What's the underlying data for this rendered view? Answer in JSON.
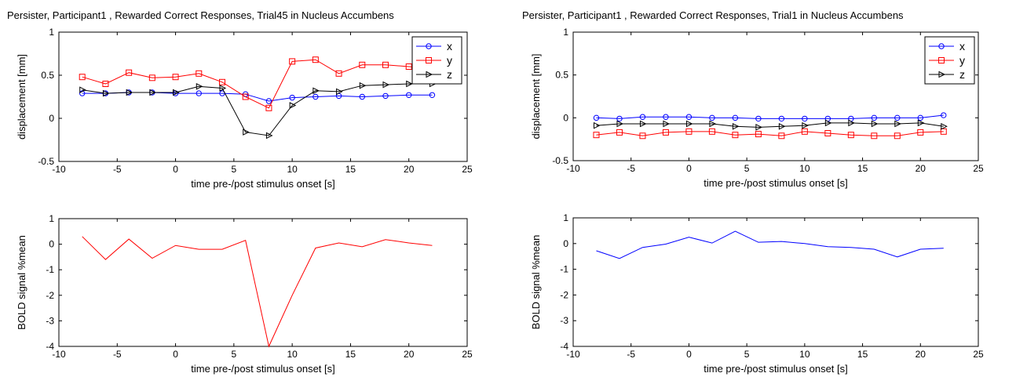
{
  "chart_data": [
    {
      "type": "line",
      "title": "Persister, Participant1 , Rewarded Correct Responses, Trial45 in Nucleus Accumbens",
      "xlabel": "time pre-/post stimulus onset [s]",
      "ylabel": "displacement [mm]",
      "xlim": [
        -10,
        25
      ],
      "ylim": [
        -0.5,
        1
      ],
      "xticks": [
        "-10",
        "-5",
        "0",
        "5",
        "10",
        "15",
        "20",
        "25"
      ],
      "yticks": [
        "-0.5",
        "0",
        "0.5",
        "1"
      ],
      "legend": "top-right",
      "x": [
        -8,
        -6,
        -4,
        -2,
        0,
        2,
        4,
        6,
        8,
        10,
        12,
        14,
        16,
        18,
        20,
        22
      ],
      "series": [
        {
          "name": "x",
          "color": "#0000ff",
          "marker": "circle",
          "values": [
            0.29,
            0.29,
            0.3,
            0.3,
            0.29,
            0.29,
            0.29,
            0.28,
            0.2,
            0.24,
            0.25,
            0.26,
            0.25,
            0.26,
            0.27,
            0.27
          ]
        },
        {
          "name": "y",
          "color": "#ff0000",
          "marker": "square",
          "values": [
            0.48,
            0.4,
            0.53,
            0.47,
            0.48,
            0.52,
            0.42,
            0.25,
            0.12,
            0.66,
            0.68,
            0.52,
            0.62,
            0.62,
            0.6,
            0.58
          ]
        },
        {
          "name": "z",
          "color": "#000000",
          "marker": "triangle-right",
          "values": [
            0.33,
            0.29,
            0.3,
            0.3,
            0.3,
            0.37,
            0.35,
            -0.16,
            -0.2,
            0.15,
            0.32,
            0.31,
            0.38,
            0.39,
            0.4,
            0.4
          ]
        }
      ]
    },
    {
      "type": "line",
      "title": "Persister, Participant1 , Rewarded Correct Responses, Trial1 in Nucleus Accumbens",
      "xlabel": "time pre-/post stimulus onset [s]",
      "ylabel": "displacement [mm]",
      "xlim": [
        -10,
        25
      ],
      "ylim": [
        -0.5,
        1
      ],
      "xticks": [
        "-10",
        "-5",
        "0",
        "5",
        "10",
        "15",
        "20",
        "25"
      ],
      "yticks": [
        "-0.5",
        "0",
        "0.5",
        "1"
      ],
      "legend": "top-right",
      "x": [
        -8,
        -6,
        -4,
        -2,
        0,
        2,
        4,
        6,
        8,
        10,
        12,
        14,
        16,
        18,
        20,
        22
      ],
      "series": [
        {
          "name": "x",
          "color": "#0000ff",
          "marker": "circle",
          "values": [
            0.0,
            -0.01,
            0.01,
            0.01,
            0.01,
            0.0,
            0.0,
            -0.01,
            -0.01,
            -0.01,
            -0.01,
            -0.01,
            0.0,
            0.0,
            0.0,
            0.03
          ]
        },
        {
          "name": "y",
          "color": "#ff0000",
          "marker": "square",
          "values": [
            -0.2,
            -0.17,
            -0.21,
            -0.17,
            -0.16,
            -0.16,
            -0.2,
            -0.19,
            -0.21,
            -0.16,
            -0.18,
            -0.2,
            -0.21,
            -0.21,
            -0.17,
            -0.16
          ]
        },
        {
          "name": "z",
          "color": "#000000",
          "marker": "triangle-right",
          "values": [
            -0.09,
            -0.07,
            -0.07,
            -0.07,
            -0.07,
            -0.07,
            -0.1,
            -0.11,
            -0.1,
            -0.09,
            -0.06,
            -0.06,
            -0.07,
            -0.07,
            -0.06,
            -0.1
          ]
        }
      ]
    },
    {
      "type": "line",
      "title": "",
      "xlabel": "time pre-/post stimulus onset [s]",
      "ylabel": "BOLD signal %mean",
      "xlim": [
        -10,
        25
      ],
      "ylim": [
        -4,
        1
      ],
      "xticks": [
        "-10",
        "-5",
        "0",
        "5",
        "10",
        "15",
        "20",
        "25"
      ],
      "yticks": [
        "-4",
        "-3",
        "-2",
        "-1",
        "0",
        "1"
      ],
      "legend": "",
      "x": [
        -8,
        -6,
        -4,
        -2,
        0,
        2,
        4,
        6,
        8,
        10,
        12,
        14,
        16,
        18,
        20,
        22
      ],
      "series": [
        {
          "name": "",
          "color": "#ff0000",
          "marker": "none",
          "values": [
            0.3,
            -0.6,
            0.2,
            -0.55,
            -0.05,
            -0.2,
            -0.2,
            0.15,
            -4.0,
            -2.0,
            -0.15,
            0.05,
            -0.1,
            0.18,
            0.05,
            -0.05
          ]
        }
      ]
    },
    {
      "type": "line",
      "title": "",
      "xlabel": "time pre-/post stimulus onset [s]",
      "ylabel": "BOLD signal %mean",
      "xlim": [
        -10,
        25
      ],
      "ylim": [
        -4,
        1
      ],
      "xticks": [
        "-10",
        "-5",
        "0",
        "5",
        "10",
        "15",
        "20",
        "25"
      ],
      "yticks": [
        "-4",
        "-3",
        "-2",
        "-1",
        "0",
        "1"
      ],
      "legend": "",
      "x": [
        -8,
        -6,
        -4,
        -2,
        0,
        2,
        4,
        6,
        8,
        10,
        12,
        14,
        16,
        18,
        20,
        22
      ],
      "series": [
        {
          "name": "",
          "color": "#0000ff",
          "marker": "none",
          "values": [
            -0.28,
            -0.58,
            -0.15,
            -0.02,
            0.25,
            0.02,
            0.48,
            0.05,
            0.08,
            0.0,
            -0.12,
            -0.15,
            -0.22,
            -0.52,
            -0.22,
            -0.18
          ]
        }
      ]
    }
  ]
}
